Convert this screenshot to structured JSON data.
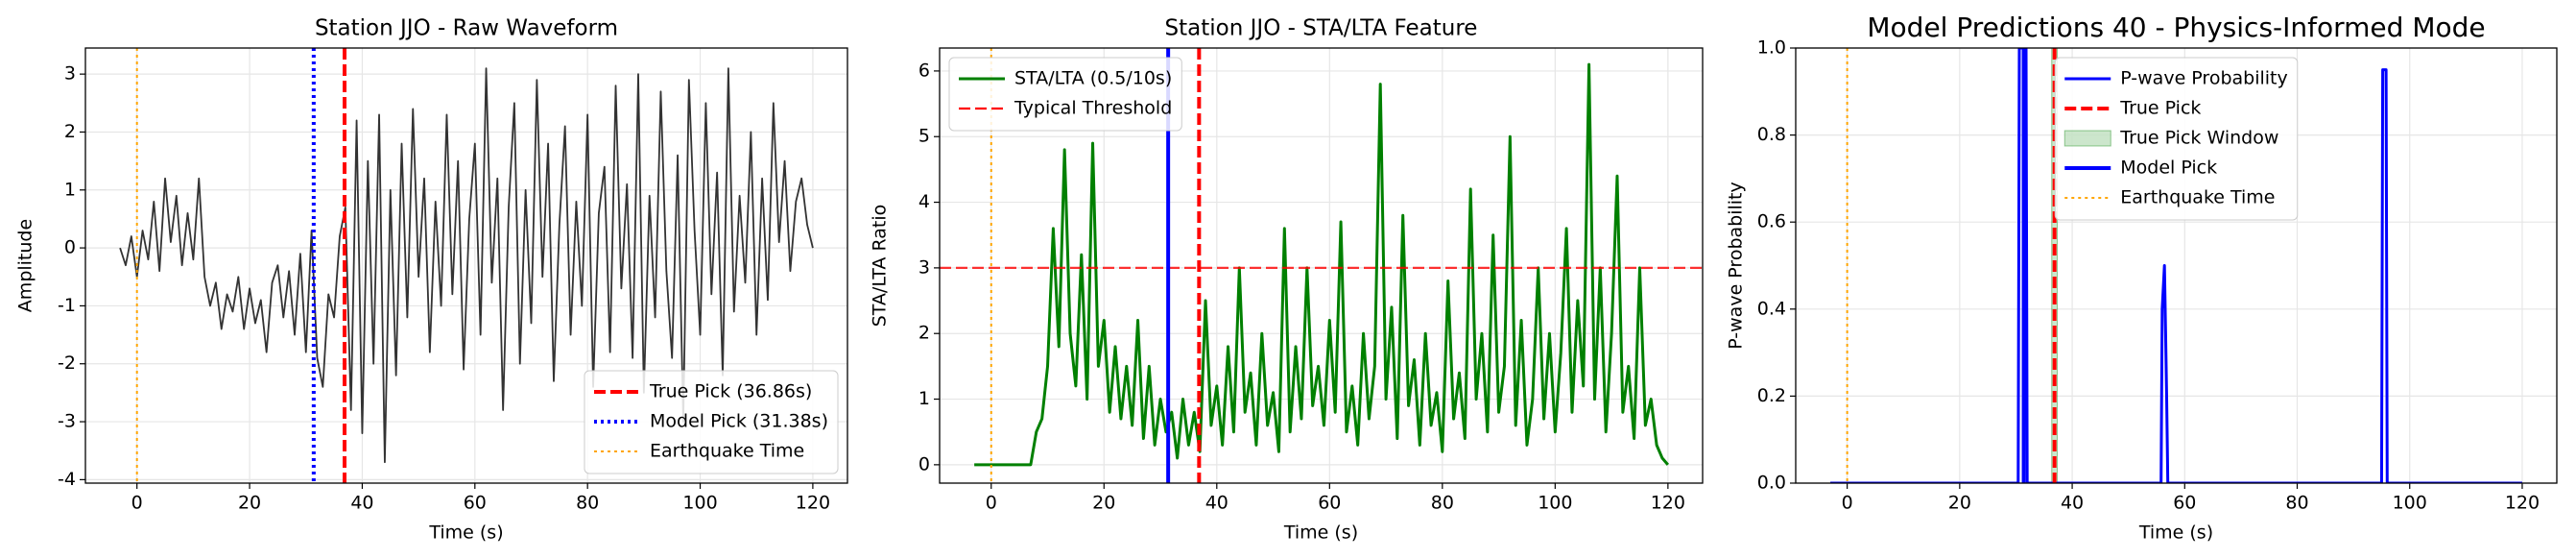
{
  "chart_data": [
    {
      "type": "line",
      "title": "Station JJO - Raw Waveform",
      "xlabel": "Time (s)",
      "ylabel": "Amplitude",
      "x": [
        -3,
        -2,
        -1,
        0,
        1,
        2,
        3,
        4,
        5,
        6,
        7,
        8,
        9,
        10,
        11,
        12,
        13,
        14,
        15,
        16,
        17,
        18,
        19,
        20,
        21,
        22,
        23,
        24,
        25,
        26,
        27,
        28,
        29,
        30,
        31,
        32,
        33,
        34,
        35,
        36,
        37,
        38,
        39,
        40,
        41,
        42,
        43,
        44,
        45,
        46,
        47,
        48,
        49,
        50,
        51,
        52,
        53,
        54,
        55,
        56,
        57,
        58,
        59,
        60,
        61,
        62,
        63,
        64,
        65,
        66,
        67,
        68,
        69,
        70,
        71,
        72,
        73,
        74,
        75,
        76,
        77,
        78,
        79,
        80,
        81,
        82,
        83,
        84,
        85,
        86,
        87,
        88,
        89,
        90,
        91,
        92,
        93,
        94,
        95,
        96,
        97,
        98,
        99,
        100,
        101,
        102,
        103,
        104,
        105,
        106,
        107,
        108,
        109,
        110,
        111,
        112,
        113,
        114,
        115,
        116,
        117,
        118,
        119,
        120
      ],
      "series": [
        {
          "color": "#333333",
          "values": [
            0,
            -0.3,
            0.2,
            -0.5,
            0.3,
            -0.2,
            0.8,
            -0.4,
            1.2,
            0.1,
            0.9,
            -0.3,
            0.6,
            -0.2,
            1.2,
            -0.5,
            -1.0,
            -0.6,
            -1.4,
            -0.8,
            -1.1,
            -0.5,
            -1.4,
            -0.7,
            -1.3,
            -0.9,
            -1.8,
            -0.6,
            -0.3,
            -1.2,
            -0.4,
            -1.5,
            -0.1,
            -1.8,
            0.3,
            -1.9,
            -2.4,
            -0.8,
            -1.2,
            0.2,
            0.7,
            -2.8,
            2.2,
            -3.2,
            1.5,
            -2.0,
            2.3,
            -3.7,
            1.0,
            -2.2,
            1.8,
            -1.2,
            2.4,
            -0.5,
            1.2,
            -1.8,
            0.8,
            -1.0,
            2.3,
            -0.8,
            1.5,
            -2.1,
            0.5,
            1.8,
            -1.5,
            3.1,
            -0.6,
            1.2,
            -2.8,
            0.7,
            2.5,
            -2.0,
            1.0,
            -1.3,
            2.9,
            -0.5,
            1.8,
            -2.3,
            0.4,
            2.1,
            -1.5,
            0.8,
            -1.0,
            2.3,
            -2.4,
            0.6,
            1.4,
            -1.8,
            2.8,
            -0.7,
            1.1,
            -1.9,
            3.0,
            -2.5,
            0.9,
            -1.2,
            2.7,
            -0.4,
            -1.9,
            1.6,
            -3.0,
            2.9,
            0.3,
            -1.5,
            2.5,
            -0.8,
            1.3,
            -2.2,
            3.1,
            -1.1,
            0.9,
            -0.6,
            2.0,
            -1.5,
            1.2,
            -0.9,
            2.5,
            0.1,
            1.5,
            -0.4,
            0.8,
            1.2,
            0.4,
            0.0
          ]
        }
      ],
      "overlays": [
        {
          "kind": "vline",
          "name": "True Pick (36.86s)",
          "x": 36.86,
          "color": "red",
          "dash": "dashed"
        },
        {
          "kind": "vline",
          "name": "Model Pick (31.38s)",
          "x": 31.38,
          "color": "blue",
          "dash": "dotted"
        },
        {
          "kind": "vline",
          "name": "Earthquake Time",
          "x": 0,
          "color": "orange",
          "dash": "dotted"
        }
      ],
      "xlim": [
        -9.15,
        126.15
      ],
      "ylim": [
        -4.06,
        3.45
      ],
      "xticks": [
        0,
        20,
        40,
        60,
        80,
        100,
        120
      ],
      "yticks": [
        -4,
        -3,
        -2,
        -1,
        0,
        1,
        2,
        3
      ],
      "grid": true,
      "legend": "lower right"
    },
    {
      "type": "line",
      "title": "Station JJO - STA/LTA Feature",
      "xlabel": "Time (s)",
      "ylabel": "STA/LTA Ratio",
      "x": [
        -3,
        -2,
        -1,
        0,
        1,
        2,
        3,
        4,
        5,
        6,
        7,
        8,
        9,
        10,
        11,
        12,
        13,
        14,
        15,
        16,
        17,
        18,
        19,
        20,
        21,
        22,
        23,
        24,
        25,
        26,
        27,
        28,
        29,
        30,
        31,
        32,
        33,
        34,
        35,
        36,
        37,
        38,
        39,
        40,
        41,
        42,
        43,
        44,
        45,
        46,
        47,
        48,
        49,
        50,
        51,
        52,
        53,
        54,
        55,
        56,
        57,
        58,
        59,
        60,
        61,
        62,
        63,
        64,
        65,
        66,
        67,
        68,
        69,
        70,
        71,
        72,
        73,
        74,
        75,
        76,
        77,
        78,
        79,
        80,
        81,
        82,
        83,
        84,
        85,
        86,
        87,
        88,
        89,
        90,
        91,
        92,
        93,
        94,
        95,
        96,
        97,
        98,
        99,
        100,
        101,
        102,
        103,
        104,
        105,
        106,
        107,
        108,
        109,
        110,
        111,
        112,
        113,
        114,
        115,
        116,
        117,
        118,
        119,
        120
      ],
      "series": [
        {
          "name": "STA/LTA (0.5/10s)",
          "color": "green",
          "values": [
            0,
            0,
            0,
            0,
            0,
            0,
            0,
            0,
            0,
            0,
            0,
            0.5,
            0.7,
            1.5,
            3.6,
            1.8,
            4.8,
            2.0,
            1.2,
            3.2,
            1.0,
            4.9,
            1.5,
            2.2,
            0.8,
            1.8,
            0.7,
            1.5,
            0.6,
            2.2,
            0.4,
            1.5,
            0.3,
            1.0,
            0.5,
            0.8,
            0.1,
            1.0,
            0.3,
            0.8,
            0.2,
            2.5,
            0.6,
            1.2,
            0.3,
            1.8,
            0.5,
            3.0,
            0.8,
            1.4,
            0.3,
            2.0,
            0.6,
            1.1,
            0.2,
            3.6,
            0.5,
            1.8,
            0.7,
            3.0,
            0.9,
            1.5,
            0.6,
            2.2,
            0.8,
            3.7,
            0.5,
            1.2,
            0.3,
            2.0,
            0.7,
            1.5,
            5.8,
            1.0,
            2.4,
            0.4,
            3.8,
            0.9,
            1.6,
            0.3,
            2.0,
            0.6,
            1.1,
            0.2,
            2.8,
            0.7,
            1.4,
            0.4,
            4.2,
            1.0,
            2.0,
            0.5,
            3.5,
            0.8,
            1.5,
            5.0,
            0.6,
            2.2,
            0.3,
            1.0,
            3.0,
            0.7,
            2.0,
            0.5,
            1.7,
            3.6,
            0.8,
            2.5,
            1.2,
            6.1,
            1.0,
            3.0,
            0.5,
            2.0,
            4.4,
            0.8,
            1.5,
            0.4,
            3.0,
            0.6,
            1.0,
            0.3,
            0.1,
            0.0
          ]
        }
      ],
      "overlays": [
        {
          "kind": "hline",
          "name": "Typical Threshold",
          "y": 3,
          "color": "red",
          "dash": "dashed"
        },
        {
          "kind": "vline",
          "x": 36.86,
          "color": "red",
          "dash": "dashed"
        },
        {
          "kind": "vline",
          "x": 31.38,
          "color": "blue",
          "dash": "solid"
        },
        {
          "kind": "vline",
          "x": 0,
          "color": "orange",
          "dash": "dotted"
        }
      ],
      "xlim": [
        -9.15,
        126.15
      ],
      "ylim": [
        -0.28,
        6.35
      ],
      "xticks": [
        0,
        20,
        40,
        60,
        80,
        100,
        120
      ],
      "yticks": [
        0,
        1,
        2,
        3,
        4,
        5,
        6
      ],
      "grid": true,
      "legend": "upper left"
    },
    {
      "type": "line",
      "title": "Model Predictions 40 - Physics-Informed Mode",
      "xlabel": "Time (s)",
      "ylabel": "P-wave Probability",
      "x": [
        -3,
        30.4,
        30.6,
        31.8,
        32.0,
        55.8,
        56.0,
        56.4,
        56.6,
        56.8,
        57.0,
        95.0,
        95.2,
        95.8,
        96.0,
        120
      ],
      "series": [
        {
          "name": "P-wave Probability",
          "color": "blue",
          "values": [
            0,
            0,
            1.0,
            1.0,
            0,
            0,
            0.4,
            0.5,
            0.35,
            0.19,
            0,
            0,
            0.95,
            0.95,
            0,
            0
          ]
        }
      ],
      "overlays": [
        {
          "kind": "vline",
          "name": "True Pick",
          "x": 36.86,
          "color": "red",
          "dash": "dashed"
        },
        {
          "kind": "span",
          "name": "True Pick Window",
          "range": [
            36.36,
            37.36
          ],
          "color": "green"
        },
        {
          "kind": "vline",
          "name": "Model Pick",
          "x": 31.38,
          "color": "blue",
          "dash": "solid"
        },
        {
          "kind": "vline",
          "name": "Earthquake Time",
          "x": 0,
          "color": "orange",
          "dash": "dotted"
        }
      ],
      "xlim": [
        -9.15,
        126.15
      ],
      "ylim": [
        0,
        1
      ],
      "xticks": [
        0,
        20,
        40,
        60,
        80,
        100,
        120
      ],
      "yticks": [
        {
          "value": 0,
          "label": "0.0"
        },
        0.2,
        0.4,
        0.6,
        0.8,
        {
          "value": 1,
          "label": "1.0"
        }
      ],
      "grid": true,
      "legend": "upper center"
    }
  ]
}
